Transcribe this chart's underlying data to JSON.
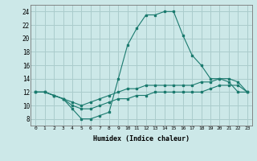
{
  "xlabel": "Humidex (Indice chaleur)",
  "background_color": "#cce8e8",
  "grid_color": "#aacccc",
  "line_color": "#1a7a6e",
  "x_all": [
    0,
    1,
    2,
    3,
    4,
    5,
    6,
    7,
    8,
    9,
    10,
    11,
    12,
    13,
    14,
    15,
    16,
    17,
    18,
    19,
    20,
    21,
    22,
    23
  ],
  "line1": [
    12,
    12,
    11.5,
    11,
    9.5,
    8,
    8,
    8.5,
    9,
    14,
    19,
    21.5,
    23.5,
    23.5,
    24,
    24,
    20.5,
    17.5,
    16,
    14,
    14,
    13.5,
    12,
    12
  ],
  "line2": [
    12,
    12,
    11.5,
    11,
    10.5,
    10,
    10.5,
    11,
    11.5,
    12,
    12.5,
    12.5,
    13,
    13,
    13,
    13,
    13,
    13,
    13.5,
    13.5,
    14,
    14,
    13.5,
    12
  ],
  "line3": [
    12,
    12,
    11.5,
    11,
    10,
    9.5,
    9.5,
    10,
    10.5,
    11,
    11,
    11.5,
    11.5,
    12,
    12,
    12,
    12,
    12,
    12,
    12.5,
    13,
    13,
    13,
    12
  ],
  "xlim": [
    -0.5,
    23.5
  ],
  "ylim": [
    7,
    25
  ],
  "yticks": [
    8,
    10,
    12,
    14,
    16,
    18,
    20,
    22,
    24
  ],
  "xticks": [
    0,
    1,
    2,
    3,
    4,
    5,
    6,
    7,
    8,
    9,
    10,
    11,
    12,
    13,
    14,
    15,
    16,
    17,
    18,
    19,
    20,
    21,
    22,
    23
  ],
  "xtick_labels": [
    "0",
    "1",
    "2",
    "3",
    "4",
    "5",
    "6",
    "7",
    "8",
    "9",
    "10",
    "11",
    "12",
    "13",
    "14",
    "15",
    "16",
    "17",
    "18",
    "19",
    "20",
    "21",
    "22",
    "23"
  ]
}
